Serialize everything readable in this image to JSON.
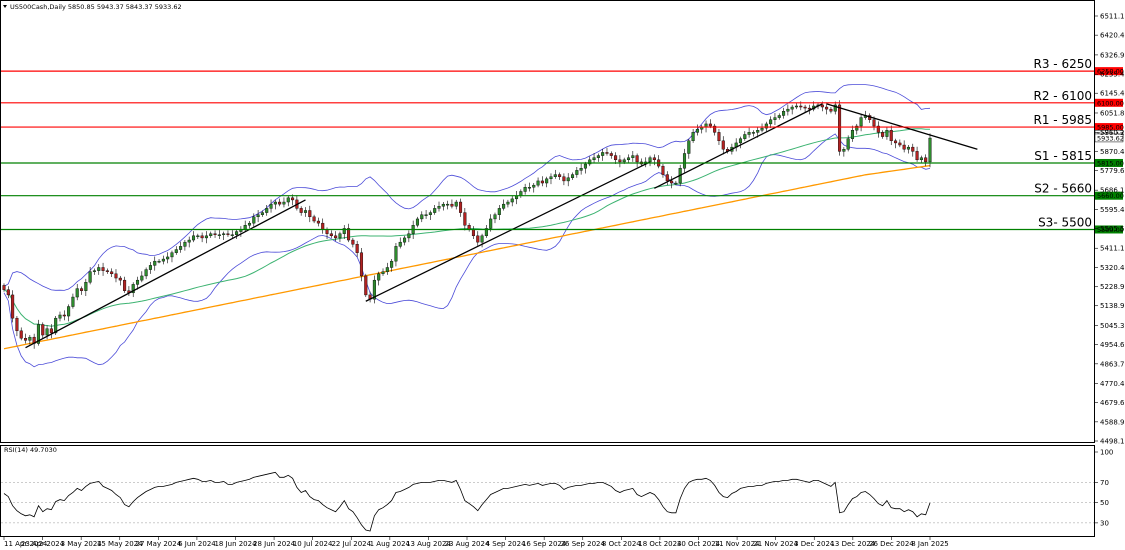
{
  "header": {
    "symbol_info": "US500Cash,Daily  5850.85 5943.37 5843.37 5933.62",
    "rsi_label": "RSI(14) 49.7030"
  },
  "chart_data": [
    {
      "type": "candlestick",
      "title": "US500Cash,Daily",
      "ohlc_last": {
        "open": 5850.85,
        "high": 5943.37,
        "low": 5843.37,
        "close": 5933.62
      },
      "ylim": [
        4498.15,
        6560
      ],
      "y_ticks": [
        "6511.15",
        "6420.40",
        "6326.90",
        "6235.45",
        "6145.40",
        "6051.80",
        "5960.25",
        "5870.40",
        "5779.65",
        "5686.15",
        "5595.40",
        "5505.50",
        "5411.15",
        "5320.40",
        "5228.90",
        "5138.90",
        "5045.30",
        "4954.65",
        "4863.70",
        "4770.40",
        "4679.65",
        "4588.90",
        "4498.15"
      ],
      "x_ticks": [
        "11 Apr 2024",
        "23 Apr 2024",
        "3 May 2024",
        "15 May 2024",
        "27 May 2024",
        "6 Jun 2024",
        "18 Jun 2024",
        "28 Jun 2024",
        "10 Jul 2024",
        "22 Jul 2024",
        "1 Aug 2024",
        "13 Aug 2024",
        "23 Aug 2024",
        "4 Sep 2024",
        "16 Sep 2024",
        "26 Sep 2024",
        "8 Oct 2024",
        "18 Oct 2024",
        "30 Oct 2024",
        "11 Nov 2024",
        "21 Nov 2024",
        "3 Dec 2024",
        "13 Dec 2024",
        "26 Dec 2024",
        "8 Jan 2025"
      ],
      "closes": [
        5215,
        5190,
        5080,
        5020,
        4985,
        4975,
        4990,
        4960,
        5050,
        5000,
        5030,
        5010,
        5080,
        5095,
        5090,
        5135,
        5180,
        5220,
        5210,
        5250,
        5300,
        5305,
        5320,
        5305,
        5300,
        5290,
        5270,
        5260,
        5210,
        5200,
        5240,
        5260,
        5280,
        5310,
        5330,
        5350,
        5350,
        5360,
        5370,
        5390,
        5405,
        5420,
        5440,
        5450,
        5470,
        5470,
        5460,
        5470,
        5480,
        5475,
        5475,
        5480,
        5475,
        5475,
        5490,
        5500,
        5520,
        5530,
        5560,
        5570,
        5580,
        5600,
        5620,
        5630,
        5620,
        5630,
        5650,
        5640,
        5600,
        5580,
        5590,
        5560,
        5540,
        5530,
        5500,
        5480,
        5470,
        5460,
        5480,
        5505,
        5450,
        5430,
        5390,
        5280,
        5190,
        5170,
        5260,
        5290,
        5300,
        5320,
        5350,
        5420,
        5440,
        5460,
        5480,
        5520,
        5550,
        5570,
        5570,
        5580,
        5600,
        5610,
        5620,
        5620,
        5610,
        5630,
        5580,
        5520,
        5500,
        5470,
        5440,
        5470,
        5505,
        5550,
        5570,
        5600,
        5620,
        5630,
        5645,
        5660,
        5680,
        5700,
        5700,
        5710,
        5730,
        5720,
        5740,
        5750,
        5760,
        5750,
        5730,
        5745,
        5760,
        5780,
        5790,
        5810,
        5830,
        5840,
        5850,
        5865,
        5860,
        5850,
        5830,
        5820,
        5830,
        5840,
        5850,
        5820,
        5810,
        5820,
        5840,
        5830,
        5800,
        5760,
        5730,
        5720,
        5720,
        5790,
        5860,
        5920,
        5960,
        5975,
        5985,
        6000,
        5990,
        5960,
        5920,
        5880,
        5870,
        5890,
        5910,
        5930,
        5950,
        5960,
        5960,
        5970,
        5980,
        6000,
        6020,
        6030,
        6040,
        6060,
        6070,
        6080,
        6085,
        6080,
        6075,
        6070,
        6085,
        6090,
        6080,
        6070,
        6060,
        6090,
        5870,
        5880,
        5930,
        5970,
        5990,
        6030,
        6040,
        6020,
        5990,
        5960,
        5940,
        5970,
        5920,
        5910,
        5900,
        5880,
        5890,
        5870,
        5830,
        5840,
        5820,
        5933
      ]
    },
    {
      "type": "line",
      "title": "RSI(14) 49.7030",
      "ylim": [
        20,
        100
      ],
      "y_ticks": [
        "100",
        "70",
        "50",
        "30"
      ],
      "values": [
        59,
        56,
        47,
        42,
        39,
        37,
        38,
        36,
        47,
        41,
        44,
        43,
        51,
        53,
        52,
        57,
        60,
        64,
        62,
        66,
        69,
        70,
        71,
        66,
        64,
        62,
        58,
        55,
        48,
        46,
        51,
        55,
        58,
        61,
        63,
        65,
        66,
        66,
        67,
        68,
        70,
        71,
        72,
        73,
        74,
        73,
        71,
        71,
        72,
        70,
        70,
        71,
        68,
        68,
        70,
        71,
        72,
        73,
        75,
        76,
        77,
        78,
        79,
        80,
        75,
        75,
        77,
        74,
        65,
        60,
        62,
        56,
        53,
        52,
        48,
        45,
        43,
        41,
        46,
        52,
        44,
        41,
        35,
        28,
        23,
        22,
        37,
        43,
        45,
        48,
        52,
        60,
        61,
        63,
        65,
        68,
        69,
        70,
        70,
        70,
        71,
        72,
        72,
        71,
        70,
        72,
        63,
        52,
        49,
        46,
        42,
        48,
        53,
        58,
        60,
        62,
        64,
        64,
        65,
        66,
        67,
        68,
        67,
        68,
        69,
        67,
        68,
        69,
        69,
        67,
        63,
        65,
        66,
        67,
        67,
        68,
        69,
        69,
        70,
        70,
        68,
        66,
        62,
        60,
        62,
        63,
        64,
        58,
        56,
        58,
        60,
        58,
        53,
        46,
        41,
        40,
        40,
        54,
        64,
        70,
        72,
        73,
        73,
        74,
        72,
        67,
        60,
        56,
        55,
        59,
        61,
        64,
        65,
        66,
        66,
        67,
        67,
        69,
        70,
        71,
        71,
        72,
        72,
        73,
        73,
        72,
        71,
        70,
        72,
        72,
        70,
        68,
        66,
        70,
        40,
        41,
        48,
        54,
        56,
        60,
        61,
        58,
        54,
        49,
        47,
        52,
        45,
        44,
        44,
        41,
        43,
        41,
        36,
        39,
        38,
        49.7
      ]
    }
  ],
  "levels": [
    {
      "label": "R3 - 6250",
      "tag": "6250.00",
      "value": 6250,
      "color": "#ff0000"
    },
    {
      "label": "R2 - 6100",
      "tag": "6100.00",
      "value": 6100,
      "color": "#ff0000"
    },
    {
      "label": "R1 - 5985",
      "tag": "5985.00",
      "value": 5985,
      "color": "#ff0000"
    },
    {
      "label": "S1 - 5815",
      "tag": "5815.00",
      "value": 5815,
      "color": "#008000"
    },
    {
      "label": "S2 - 5660",
      "tag": "5660.00",
      "value": 5660,
      "color": "#008000"
    },
    {
      "label": "S3- 5500",
      "tag": "5500.00",
      "value": 5500,
      "color": "#008000"
    }
  ],
  "price_tags": [
    "5951.17",
    "5933.62"
  ],
  "colors": {
    "bull_candle": "#2e8b2e",
    "bear_candle": "#b22222",
    "bollinger": "#4b4bd8",
    "ma_mid": "#3cb371",
    "ma_long": "#ff9900",
    "trendline": "#000000",
    "rsi_line": "#000000"
  }
}
